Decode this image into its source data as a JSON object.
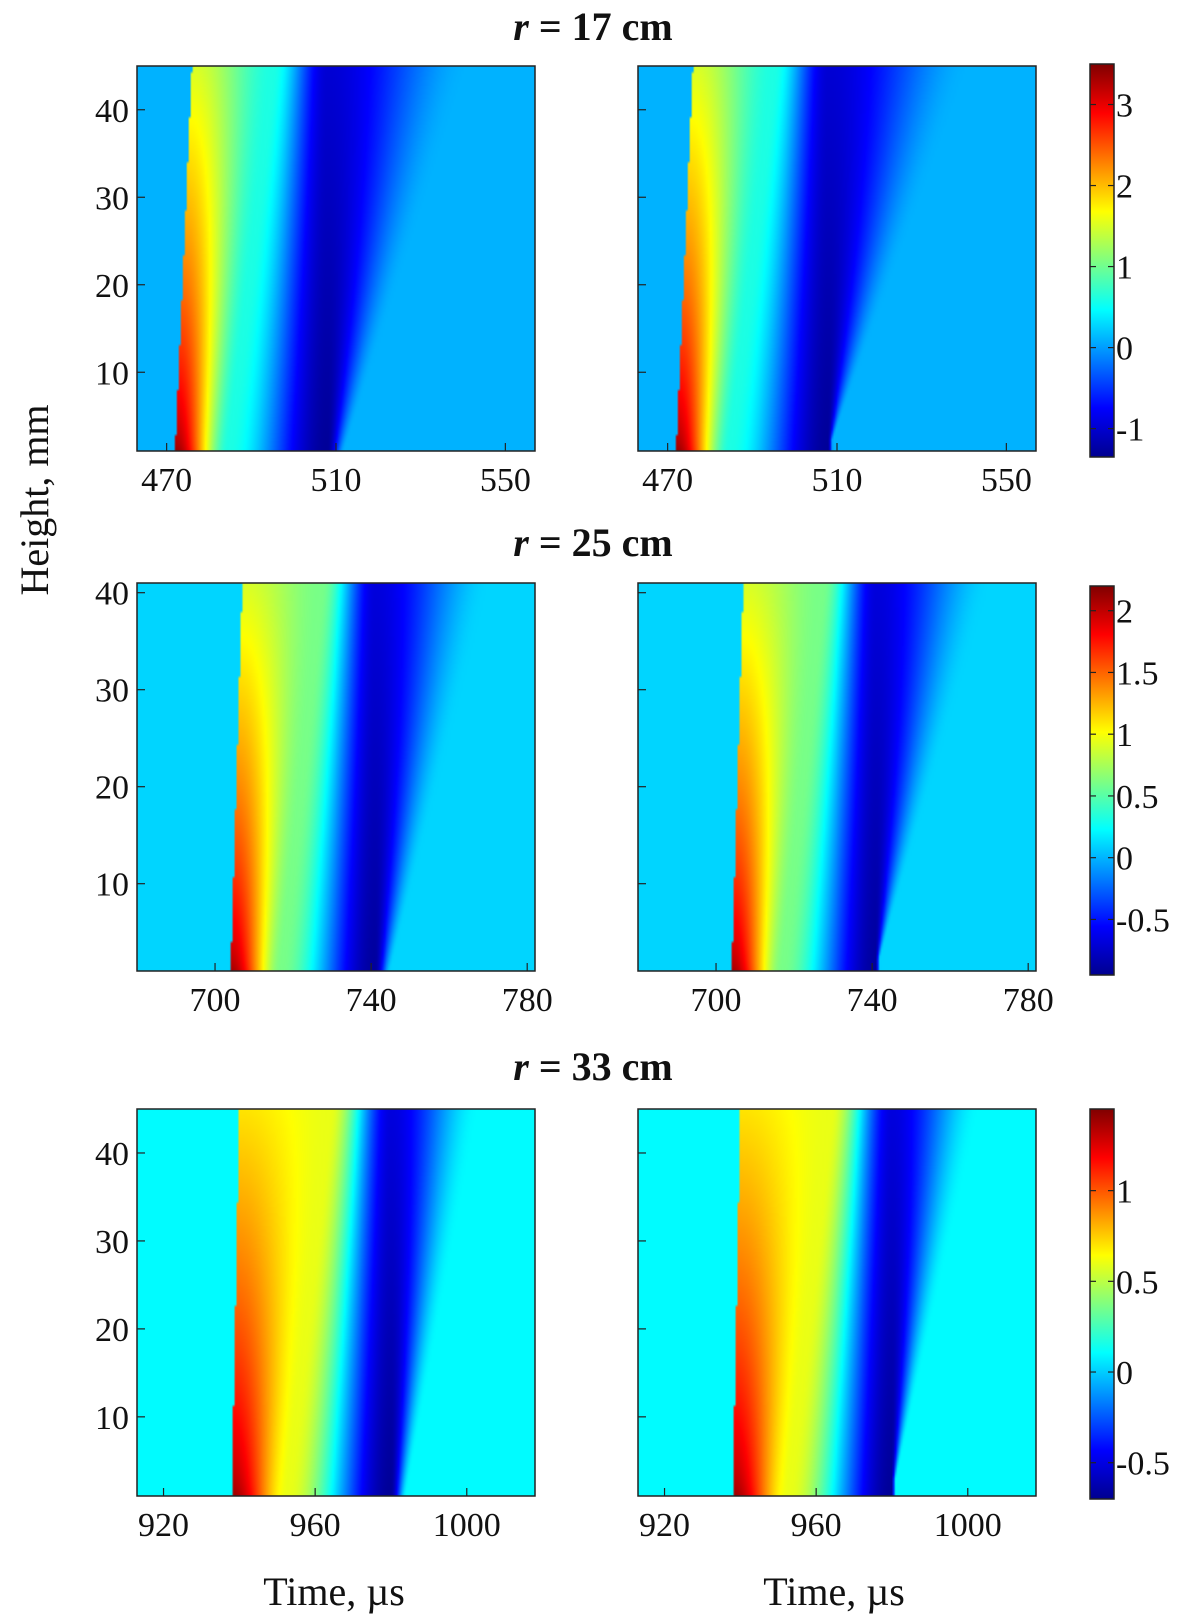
{
  "colormap": [
    "#00008f",
    "#0000ff",
    "#0080ff",
    "#00ffff",
    "#80ff80",
    "#ffff00",
    "#ff8000",
    "#ff0000",
    "#800000"
  ],
  "chart_data": {
    "type": "heatmap",
    "ylabel": "Height, mm",
    "xlabel": "Time, µs",
    "rows": [
      {
        "title_r": "r",
        "title_rest": " = 17 cm",
        "xlim": [
          463,
          557
        ],
        "ylim": [
          1,
          45
        ],
        "xticks": [
          470,
          510,
          550
        ],
        "yticks": [
          10,
          20,
          30,
          40
        ],
        "clim": [
          -1.35,
          3.5
        ],
        "cbticks": [
          {
            "v": 3,
            "label": "3"
          },
          {
            "v": 2,
            "label": "2"
          },
          {
            "v": 1,
            "label": "1"
          },
          {
            "v": 0,
            "label": "0"
          },
          {
            "v": -1,
            "label": "-1"
          }
        ],
        "fields": {
          "background": 0.1,
          "arrival_time_at_bottom": 472,
          "arrival_time_at_top": 476,
          "peak_at_bottom": 3.4,
          "peak_at_top": 1.5,
          "trough_time": 508,
          "trough_value": -1.3,
          "recovery_time_at_top": 541
        }
      },
      {
        "title_r": "r",
        "title_rest": " = 25 cm",
        "xlim": [
          680,
          782
        ],
        "ylim": [
          1,
          41
        ],
        "xticks": [
          700,
          740,
          780
        ],
        "yticks": [
          10,
          20,
          30,
          40
        ],
        "clim": [
          -0.95,
          2.2
        ],
        "cbticks": [
          {
            "v": 2,
            "label": "2"
          },
          {
            "v": 1.5,
            "label": "1.5"
          },
          {
            "v": 1,
            "label": "1"
          },
          {
            "v": 0.5,
            "label": "0.5"
          },
          {
            "v": 0,
            "label": "0"
          },
          {
            "v": -0.5,
            "label": "-0.5"
          }
        ],
        "fields": {
          "background": 0.1,
          "arrival_time_at_bottom": 704,
          "arrival_time_at_top": 707,
          "peak_at_bottom": 2.1,
          "peak_at_top": 0.9,
          "trough_time": 741,
          "trough_value": -0.9,
          "recovery_time_at_top": 770
        }
      },
      {
        "title_r": "r",
        "title_rest": " = 33 cm",
        "xlim": [
          913,
          1018
        ],
        "ylim": [
          1,
          45
        ],
        "xticks": [
          920,
          960,
          1000
        ],
        "yticks": [
          10,
          20,
          30,
          40
        ],
        "clim": [
          -0.7,
          1.45
        ],
        "cbticks": [
          {
            "v": 1,
            "label": "1"
          },
          {
            "v": 0.5,
            "label": "0.5"
          },
          {
            "v": 0,
            "label": "0"
          },
          {
            "v": -0.5,
            "label": "-0.5"
          }
        ],
        "fields": {
          "background": 0.1,
          "arrival_time_at_bottom": 938,
          "arrival_time_at_top": 940,
          "peak_at_bottom": 1.4,
          "peak_at_top": 0.7,
          "trough_time": 980,
          "trough_value": -0.68,
          "recovery_time_at_top": 1003
        }
      }
    ]
  }
}
